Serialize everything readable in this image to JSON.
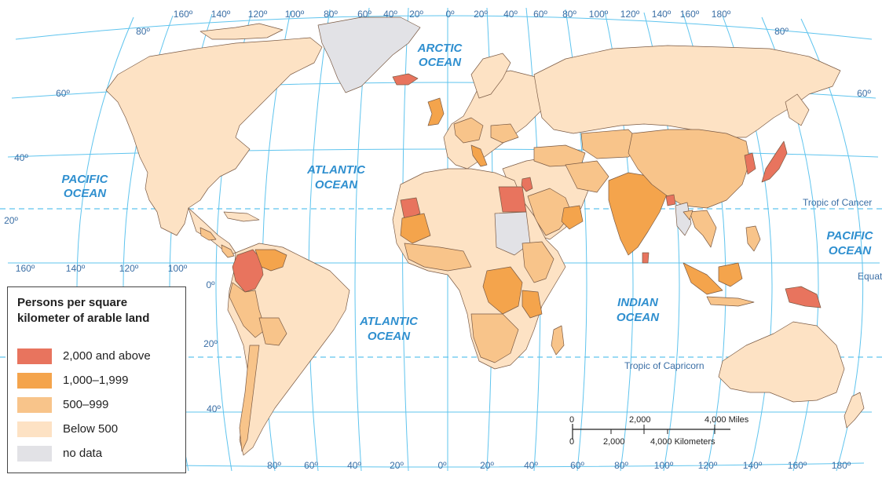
{
  "map": {
    "oceans": {
      "arctic": [
        "ARCTIC",
        "OCEAN"
      ],
      "pacific_west": [
        "PACIFIC",
        "OCEAN"
      ],
      "atlantic_north": [
        "ATLANTIC",
        "OCEAN"
      ],
      "atlantic_south": [
        "ATLANTIC",
        "OCEAN"
      ],
      "indian": [
        "INDIAN",
        "OCEAN"
      ],
      "pacific_east": [
        "PACIFIC",
        "OCEAN"
      ]
    },
    "lines": {
      "tropic_cancer": "Tropic of Cancer",
      "tropic_capricorn": "Tropic of Capricorn",
      "equator": "Equator"
    },
    "top_longitudes": [
      "160º",
      "140º",
      "120º",
      "100º",
      "80º",
      "60º",
      "40º",
      "20º",
      "0º",
      "20º",
      "40º",
      "60º",
      "80º",
      "100º",
      "120º",
      "140º",
      "160º",
      "180º"
    ],
    "bottom_longitudes": [
      "80º",
      "60º",
      "40º",
      "20º",
      "0º",
      "20º",
      "40º",
      "60º",
      "80º",
      "100º",
      "120º",
      "140º",
      "160º",
      "180º"
    ],
    "side_longitudes": [
      "160º",
      "140º",
      "120º",
      "100º"
    ],
    "latitudes_left": [
      "80º",
      "60º",
      "40º",
      "20º"
    ],
    "latitudes_center": [
      "0º",
      "20º",
      "40º"
    ],
    "latitudes_right": [
      "80º",
      "60º"
    ]
  },
  "legend": {
    "title": "Persons per square kilometer of arable land",
    "items": [
      {
        "label": "2,000 and above",
        "color": "#e8745e"
      },
      {
        "label": "1,000–1,999",
        "color": "#f4a44c"
      },
      {
        "label": "500–999",
        "color": "#f8c48a"
      },
      {
        "label": "Below 500",
        "color": "#fde2c4"
      },
      {
        "label": "no data",
        "color": "#e2e2e6"
      }
    ]
  },
  "scale": {
    "miles": [
      "0",
      "2,000",
      "4,000 Miles"
    ],
    "km": [
      "0",
      "2,000",
      "4,000 Kilometers"
    ]
  }
}
